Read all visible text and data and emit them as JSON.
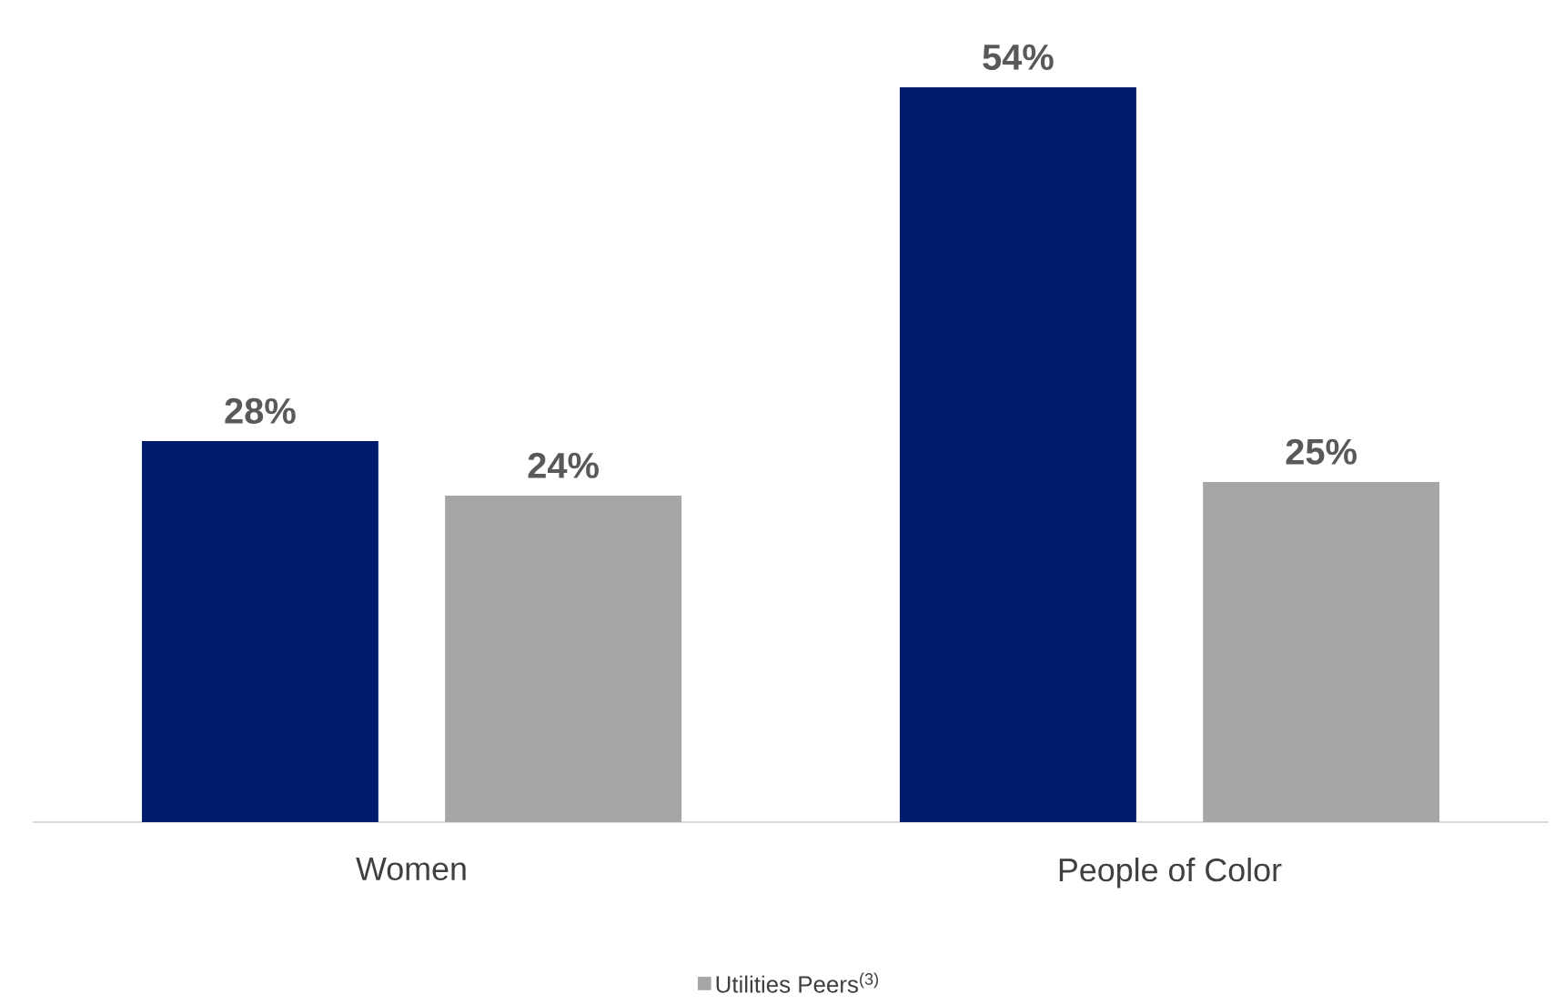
{
  "chart_data": {
    "type": "bar",
    "categories": [
      "Women",
      "People of Color"
    ],
    "series": [
      {
        "color": "#001a6e",
        "values": [
          28,
          54
        ],
        "value_labels": [
          "28%",
          "54%"
        ]
      },
      {
        "name": "Utilities Peers$^{(3)}$",
        "color": "#a6a6a6",
        "values": [
          24,
          25
        ],
        "value_labels": [
          "24%",
          "25%"
        ]
      }
    ],
    "tick_labels": "x",
    "legend": "bottom"
  }
}
